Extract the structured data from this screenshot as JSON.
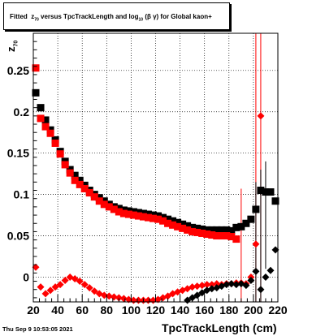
{
  "title": {
    "prefix": "Fitted",
    "var": "z",
    "var_sub": "70",
    "middle": "versus TpcTrackLength and log",
    "log_sub": "10",
    "tail": "(β  γ) for Global kaon+"
  },
  "footer": "Thu Sep  9 10:53:05 2021",
  "colors": {
    "black_series": "#000000",
    "red_series": "#ff0000",
    "grid": "#000000"
  },
  "chart_data": {
    "type": "scatter",
    "title": "Fitted z70 versus TpcTrackLength and log10(β γ) for Global kaon+",
    "xlabel": "TpcTrackLength (cm)",
    "ylabel": "z70",
    "ylabel_main": "z",
    "ylabel_sub": "70",
    "xlim": [
      20,
      220
    ],
    "ylim": [
      -0.03,
      0.295
    ],
    "grid": true,
    "x_ticks": [
      20,
      40,
      60,
      80,
      100,
      120,
      140,
      160,
      180,
      200,
      220
    ],
    "x_tick_labels": [
      "20",
      "40",
      "60",
      "80",
      "100",
      "120",
      "140",
      "160",
      "180",
      "200",
      "220"
    ],
    "y_ticks": [
      0,
      0.05,
      0.1,
      0.15,
      0.2,
      0.25
    ],
    "y_tick_labels": [
      "0",
      "0.05",
      "0.1",
      "0.15",
      "0.2",
      "0.25"
    ],
    "series": [
      {
        "marker": "square",
        "color": "#000000",
        "points": [
          [
            22,
            0.223
          ],
          [
            26,
            0.205
          ],
          [
            30,
            0.19
          ],
          [
            34,
            0.178
          ],
          [
            38,
            0.166
          ],
          [
            42,
            0.152
          ],
          [
            46,
            0.14
          ],
          [
            50,
            0.13
          ],
          [
            54,
            0.123
          ],
          [
            58,
            0.117
          ],
          [
            62,
            0.111
          ],
          [
            66,
            0.105
          ],
          [
            70,
            0.1
          ],
          [
            74,
            0.096
          ],
          [
            78,
            0.092
          ],
          [
            82,
            0.088
          ],
          [
            86,
            0.085
          ],
          [
            90,
            0.083
          ],
          [
            94,
            0.081
          ],
          [
            98,
            0.08
          ],
          [
            102,
            0.079
          ],
          [
            106,
            0.078
          ],
          [
            110,
            0.077
          ],
          [
            114,
            0.076
          ],
          [
            118,
            0.075
          ],
          [
            122,
            0.074
          ],
          [
            126,
            0.072
          ],
          [
            130,
            0.07
          ],
          [
            134,
            0.068
          ],
          [
            138,
            0.066
          ],
          [
            142,
            0.064
          ],
          [
            146,
            0.062
          ],
          [
            150,
            0.06
          ],
          [
            154,
            0.059
          ],
          [
            158,
            0.058
          ],
          [
            162,
            0.057
          ],
          [
            166,
            0.057
          ],
          [
            170,
            0.057
          ],
          [
            174,
            0.057
          ],
          [
            178,
            0.057
          ],
          [
            182,
            0.056
          ],
          [
            186,
            0.06
          ],
          [
            190,
            0.061
          ],
          [
            194,
            0.065
          ],
          [
            198,
            0.07
          ],
          [
            202,
            0.082
          ],
          [
            206,
            0.105
          ],
          [
            210,
            0.103
          ],
          [
            214,
            0.103
          ],
          [
            218,
            0.092
          ]
        ],
        "error_bars": []
      },
      {
        "marker": "square",
        "color": "#ff0000",
        "points": [
          [
            22,
            0.253
          ],
          [
            26,
            0.192
          ],
          [
            30,
            0.182
          ],
          [
            34,
            0.174
          ],
          [
            38,
            0.162
          ],
          [
            42,
            0.149
          ],
          [
            46,
            0.136
          ],
          [
            50,
            0.126
          ],
          [
            54,
            0.117
          ],
          [
            58,
            0.112
          ],
          [
            62,
            0.107
          ],
          [
            66,
            0.102
          ],
          [
            70,
            0.097
          ],
          [
            74,
            0.092
          ],
          [
            78,
            0.088
          ],
          [
            82,
            0.085
          ],
          [
            86,
            0.082
          ],
          [
            90,
            0.079
          ],
          [
            94,
            0.077
          ],
          [
            98,
            0.076
          ],
          [
            102,
            0.075
          ],
          [
            106,
            0.074
          ],
          [
            110,
            0.073
          ],
          [
            114,
            0.072
          ],
          [
            118,
            0.071
          ],
          [
            122,
            0.07
          ],
          [
            126,
            0.068
          ],
          [
            130,
            0.065
          ],
          [
            134,
            0.063
          ],
          [
            138,
            0.061
          ],
          [
            142,
            0.059
          ],
          [
            146,
            0.057
          ],
          [
            150,
            0.055
          ],
          [
            154,
            0.054
          ],
          [
            158,
            0.053
          ],
          [
            162,
            0.052
          ],
          [
            166,
            0.051
          ],
          [
            170,
            0.05
          ],
          [
            174,
            0.05
          ],
          [
            178,
            0.05
          ],
          [
            182,
            0.049
          ],
          [
            186,
            0.046
          ]
        ],
        "error_bars": []
      },
      {
        "marker": "diamond",
        "color": "#ff0000",
        "points": [
          [
            22,
            0.012
          ],
          [
            26,
            -0.012
          ],
          [
            30,
            -0.02
          ],
          [
            34,
            -0.016
          ],
          [
            38,
            -0.012
          ],
          [
            42,
            -0.009
          ],
          [
            46,
            -0.004
          ],
          [
            50,
            0.0
          ],
          [
            54,
            -0.002
          ],
          [
            58,
            -0.005
          ],
          [
            62,
            -0.009
          ],
          [
            66,
            -0.013
          ],
          [
            70,
            -0.017
          ],
          [
            74,
            -0.02
          ],
          [
            78,
            -0.022
          ],
          [
            82,
            -0.023
          ],
          [
            86,
            -0.024
          ],
          [
            90,
            -0.025
          ],
          [
            94,
            -0.026
          ],
          [
            98,
            -0.027
          ],
          [
            102,
            -0.028
          ],
          [
            106,
            -0.028
          ],
          [
            110,
            -0.028
          ],
          [
            114,
            -0.028
          ],
          [
            118,
            -0.028
          ],
          [
            122,
            -0.027
          ],
          [
            126,
            -0.025
          ],
          [
            130,
            -0.023
          ],
          [
            134,
            -0.02
          ],
          [
            138,
            -0.018
          ],
          [
            142,
            -0.016
          ],
          [
            146,
            -0.014
          ],
          [
            150,
            -0.012
          ],
          [
            154,
            -0.011
          ],
          [
            158,
            -0.01
          ],
          [
            162,
            -0.009
          ],
          [
            166,
            -0.009
          ],
          [
            170,
            -0.008
          ],
          [
            174,
            -0.009
          ],
          [
            178,
            -0.008
          ],
          [
            182,
            -0.008
          ],
          [
            186,
            -0.007
          ],
          [
            190,
            -0.007
          ],
          [
            194,
            -0.008
          ],
          [
            198,
            0.0
          ],
          [
            202,
            0.04
          ],
          [
            206,
            0.195
          ]
        ],
        "error_bars": [
          {
            "x": 190,
            "low": -0.03,
            "high": 0.107
          },
          {
            "x": 202,
            "low": -0.03,
            "high": 0.295
          },
          {
            "x": 206,
            "low": -0.03,
            "high": 0.295
          }
        ]
      },
      {
        "marker": "diamond",
        "color": "#000000",
        "points": [
          [
            146,
            -0.028
          ],
          [
            150,
            -0.025
          ],
          [
            154,
            -0.022
          ],
          [
            158,
            -0.019
          ],
          [
            162,
            -0.016
          ],
          [
            166,
            -0.014
          ],
          [
            170,
            -0.013
          ],
          [
            174,
            -0.011
          ],
          [
            178,
            -0.009
          ],
          [
            182,
            -0.008
          ],
          [
            186,
            -0.009
          ],
          [
            190,
            -0.008
          ],
          [
            194,
            -0.01
          ],
          [
            198,
            -0.004
          ],
          [
            202,
            0.007
          ],
          [
            206,
            -0.015
          ],
          [
            210,
            0.0
          ],
          [
            214,
            0.008
          ],
          [
            218,
            0.033
          ]
        ],
        "error_bars": [
          {
            "x": 202,
            "low": -0.03,
            "high": 0.115
          },
          {
            "x": 206,
            "low": -0.03,
            "high": 0.13
          },
          {
            "x": 210,
            "low": 0.01,
            "high": 0.14
          }
        ]
      }
    ]
  }
}
